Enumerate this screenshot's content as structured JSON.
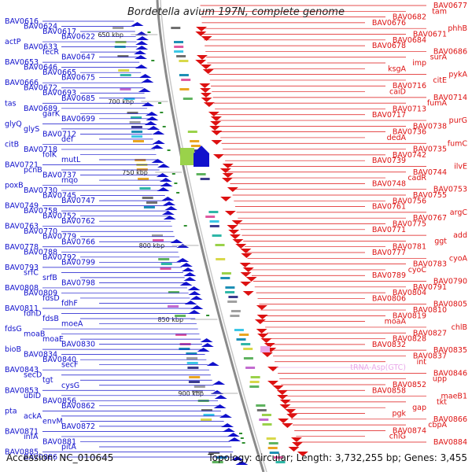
{
  "title": "Bordetella avium 197N, complete genome",
  "footer": {
    "accession": "Accession: NC_010645",
    "topology": "Topology: circular; Length: 3,732,255 bp; Genes: 3,455"
  },
  "colors": {
    "left_strand": "#1111cc",
    "right_strand": "#dd1111",
    "trna": "#e9a8e9",
    "backbone": "#8a8a8a"
  },
  "scale": [
    "650 kbp",
    "700 kbp",
    "750 kbp",
    "800 kbp",
    "850 kbp",
    "900 kbp"
  ],
  "left_labels": [
    "BAV0616",
    "BAV0624",
    "BAV0617",
    "BAV0622",
    "actP",
    "BAV0633",
    "fecR",
    "BAV0647",
    "BAV0653",
    "BAV0646",
    "BAV0665",
    "BAV0675",
    "BAV0666",
    "BAV0672",
    "BAV0693",
    "BAV0685",
    "tas",
    "BAV0689",
    "garK",
    "BAV0699",
    "glyQ",
    "glyS",
    "BAV0712",
    "def",
    "citB",
    "BAV0718",
    "folK",
    "mutL",
    "BAV0721",
    "pcnB",
    "BAV0737",
    "mqo",
    "poxB",
    "BAV0730",
    "BAV0745",
    "BAV0747",
    "BAV0749",
    "BAV0758",
    "BAV0752",
    "BAV0762",
    "BAV0763",
    "BAV0770",
    "BAV0779",
    "BAV0766",
    "BAV0778",
    "BAV0788",
    "BAV0792",
    "BAV0799",
    "BAV0793",
    "srfC",
    "srfB",
    "BAV0798",
    "BAV0808",
    "BAV0809",
    "fdsD",
    "fdhF",
    "BAV0811",
    "fdhD",
    "fdsB",
    "moeA",
    "fdsG",
    "moaB",
    "moaE",
    "BAV0830",
    "bioB",
    "BAV0834",
    "BAV0840",
    "secF",
    "BAV0843",
    "secD",
    "tgt",
    "cysG",
    "BAV0853",
    "ubiD",
    "BAV0856",
    "BAV0862",
    "pta",
    "ackA",
    "envM",
    "BAV0872",
    "BAV0871",
    "infA",
    "BAV0881",
    "pitA",
    "BAV0885",
    "BAV0886"
  ],
  "right_labels": [
    "BAV0677",
    "tam",
    "BAV0682",
    "BAV0676",
    "phhB",
    "BAV0671",
    "BAV0684",
    "BAV0678",
    "BAV0686",
    "surA",
    "imp",
    "ksgA",
    "pykA",
    "citE",
    "BAV0716",
    "caiD",
    "BAV0714",
    "fumA",
    "BAV0713",
    "BAV0717",
    "purG",
    "BAV0738",
    "BAV0736",
    "dedA",
    "fumC",
    "BAV0735",
    "BAV0742",
    "BAV0739",
    "ilvE",
    "BAV0744",
    "cadR",
    "BAV0748",
    "BAV0753",
    "BAV0755",
    "BAV0756",
    "BAV0761",
    "argC",
    "BAV0767",
    "BAV0775",
    "BAV0771",
    "add",
    "ggt",
    "BAV0781",
    "BAV0777",
    "cyoA",
    "BAV0783",
    "cyoC",
    "BAV0789",
    "BAV0790",
    "BAV0791",
    "BAV0804",
    "BAV0806",
    "BAV0805",
    "BAV0810",
    "BAV0819",
    "moaA",
    "chlB",
    "BAV0827",
    "BAV0828",
    "BAV0832",
    "BAV0835",
    "BAV0837",
    "int",
    "tRNA-Asp(GTC)",
    "BAV0846",
    "upp",
    "BAV0852",
    "BAV0858",
    "maeB1",
    "tkt",
    "gap",
    "pgk",
    "BAV0866",
    "cbpA",
    "BAV0874",
    "chlG",
    "BAV0884"
  ]
}
